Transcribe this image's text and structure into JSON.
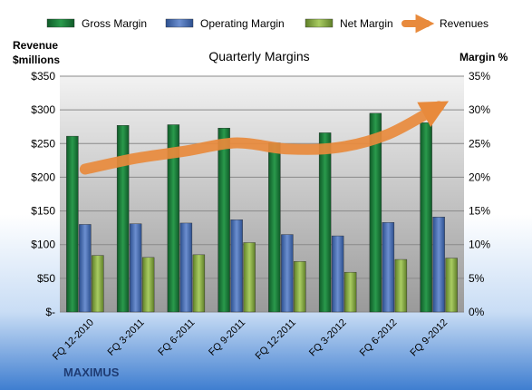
{
  "chart_data": {
    "type": "bar",
    "title": "Quarterly Margins",
    "categories": [
      "FQ 12-2010",
      "FQ 3-2011",
      "FQ 6-2011",
      "FQ 9-2011",
      "FQ 12-2011",
      "FQ 3-2012",
      "FQ 6-2012",
      "FQ 9-2012"
    ],
    "series": [
      {
        "name": "Gross Margin",
        "axis": "right",
        "color": "#1e7a3c",
        "values": [
          26.1,
          27.7,
          27.8,
          27.3,
          25.1,
          26.6,
          29.5,
          28.1
        ]
      },
      {
        "name": "Operating Margin",
        "axis": "right",
        "color": "#4a6fb0",
        "values": [
          13.0,
          13.1,
          13.2,
          13.7,
          11.5,
          11.3,
          13.3,
          14.1
        ]
      },
      {
        "name": "Net Margin",
        "axis": "right",
        "color": "#8db045",
        "values": [
          8.4,
          8.1,
          8.5,
          10.3,
          7.5,
          5.9,
          7.8,
          8.0
        ]
      },
      {
        "name": "Revenues",
        "axis": "left",
        "type": "line",
        "color": "#e88a3c",
        "values": [
          212,
          228,
          239,
          251,
          242,
          244,
          264,
          305
        ]
      }
    ],
    "ylabel_left": "Revenue $millions",
    "ylabel_right": "Margin %",
    "ylim_left": [
      0,
      350
    ],
    "ylim_right": [
      0,
      35
    ],
    "yticks_left": [
      "$-",
      "$50",
      "$100",
      "$150",
      "$200",
      "$250",
      "$300",
      "$350"
    ],
    "yticks_right": [
      "0%",
      "5%",
      "10%",
      "15%",
      "20%",
      "25%",
      "30%",
      "35%"
    ],
    "grid": true,
    "legend": "top"
  },
  "brand": "MAXIMUS"
}
